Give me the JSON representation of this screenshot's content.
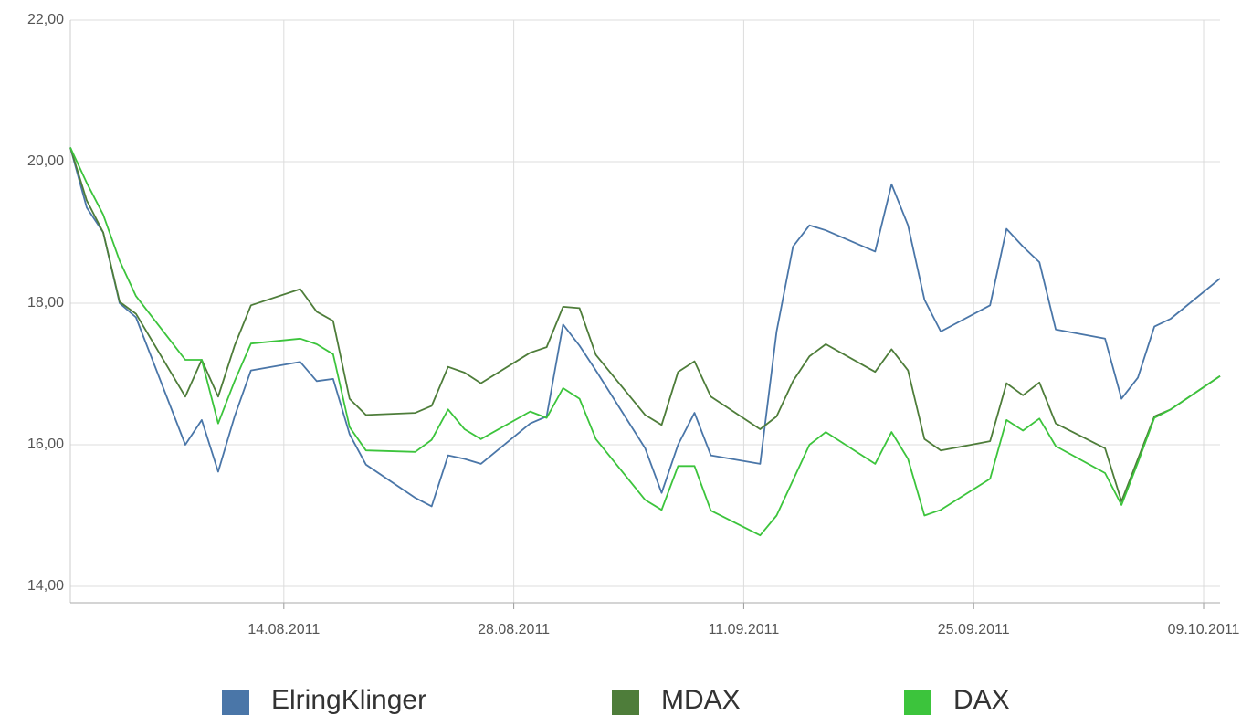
{
  "chart_data": {
    "type": "line",
    "x": [
      "2011-08-01",
      "2011-08-02",
      "2011-08-03",
      "2011-08-04",
      "2011-08-05",
      "2011-08-08",
      "2011-08-09",
      "2011-08-10",
      "2011-08-11",
      "2011-08-12",
      "2011-08-15",
      "2011-08-16",
      "2011-08-17",
      "2011-08-18",
      "2011-08-19",
      "2011-08-22",
      "2011-08-23",
      "2011-08-24",
      "2011-08-25",
      "2011-08-26",
      "2011-08-29",
      "2011-08-30",
      "2011-08-31",
      "2011-09-01",
      "2011-09-02",
      "2011-09-05",
      "2011-09-06",
      "2011-09-07",
      "2011-09-08",
      "2011-09-09",
      "2011-09-12",
      "2011-09-13",
      "2011-09-14",
      "2011-09-15",
      "2011-09-16",
      "2011-09-19",
      "2011-09-20",
      "2011-09-21",
      "2011-09-22",
      "2011-09-23",
      "2011-09-26",
      "2011-09-27",
      "2011-09-28",
      "2011-09-29",
      "2011-09-30",
      "2011-10-03",
      "2011-10-04",
      "2011-10-05",
      "2011-10-06",
      "2011-10-07",
      "2011-10-10"
    ],
    "series": [
      {
        "name": "ElringKlinger",
        "color": "#4a76a8",
        "values": [
          20.2,
          19.35,
          19.0,
          18.0,
          17.8,
          16.0,
          16.35,
          15.62,
          16.4,
          17.05,
          17.17,
          16.9,
          16.93,
          16.15,
          15.72,
          15.25,
          15.13,
          15.85,
          15.8,
          15.73,
          16.3,
          16.4,
          17.7,
          17.4,
          17.05,
          15.95,
          15.32,
          16.0,
          16.45,
          15.85,
          15.73,
          17.6,
          18.8,
          19.1,
          19.03,
          18.73,
          19.68,
          19.1,
          18.05,
          17.6,
          17.97,
          19.05,
          18.8,
          18.58,
          17.63,
          17.5,
          16.65,
          16.95,
          17.67,
          17.78,
          18.35
        ]
      },
      {
        "name": "MDAX",
        "color": "#4e7d3a",
        "values": [
          20.2,
          19.45,
          19.0,
          18.02,
          17.85,
          16.68,
          17.2,
          16.68,
          17.4,
          17.97,
          18.2,
          17.88,
          17.75,
          16.65,
          16.42,
          16.45,
          16.55,
          17.1,
          17.02,
          16.87,
          17.3,
          17.38,
          17.95,
          17.93,
          17.27,
          16.42,
          16.28,
          17.03,
          17.18,
          16.68,
          16.22,
          16.4,
          16.9,
          17.25,
          17.42,
          17.03,
          17.35,
          17.05,
          16.08,
          15.92,
          16.05,
          16.87,
          16.7,
          16.88,
          16.3,
          15.95,
          15.2,
          15.8,
          16.4,
          16.5,
          16.97
        ]
      },
      {
        "name": "DAX",
        "color": "#3cc43c",
        "values": [
          20.2,
          19.7,
          19.25,
          18.6,
          18.1,
          17.2,
          17.2,
          16.3,
          16.9,
          17.43,
          17.5,
          17.42,
          17.28,
          16.25,
          15.92,
          15.9,
          16.07,
          16.5,
          16.22,
          16.08,
          16.47,
          16.38,
          16.8,
          16.65,
          16.08,
          15.22,
          15.08,
          15.7,
          15.7,
          15.07,
          14.72,
          15.0,
          15.5,
          16.0,
          16.18,
          15.73,
          16.18,
          15.8,
          15.0,
          15.08,
          15.52,
          16.35,
          16.2,
          16.37,
          15.98,
          15.6,
          15.15,
          15.75,
          16.38,
          16.5,
          16.97
        ]
      }
    ],
    "xlim": [
      "2011-08-01",
      "2011-10-10"
    ],
    "xticks": [
      {
        "value": "2011-08-14",
        "label": "14.08.2011"
      },
      {
        "value": "2011-08-28",
        "label": "28.08.2011"
      },
      {
        "value": "2011-09-11",
        "label": "11.09.2011"
      },
      {
        "value": "2011-09-25",
        "label": "25.09.2011"
      },
      {
        "value": "2011-10-09",
        "label": "09.10.2011"
      }
    ],
    "ylim": [
      14,
      22
    ],
    "yticks": [
      {
        "value": 14,
        "label": "14,00"
      },
      {
        "value": 16,
        "label": "16,00"
      },
      {
        "value": 18,
        "label": "18,00"
      },
      {
        "value": 20,
        "label": "20,00"
      },
      {
        "value": 22,
        "label": "22,00"
      }
    ],
    "grid": true,
    "legend": "bottom"
  }
}
